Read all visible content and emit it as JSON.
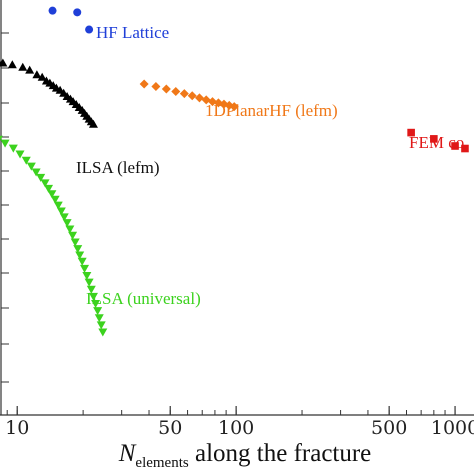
{
  "chart_data": {
    "type": "scatter",
    "x_scale": "log",
    "xlim": [
      8,
      1300
    ],
    "ylim": [
      0,
      1
    ],
    "xlabel_main": "N",
    "xlabel_sub": "elements",
    "xlabel_rest": " along the fracture",
    "x_ticks": [
      {
        "value": 10,
        "label": "10"
      },
      {
        "value": 50,
        "label": "50"
      },
      {
        "value": 100,
        "label": "100"
      },
      {
        "value": 500,
        "label": "500"
      },
      {
        "value": 1000,
        "label": "1000"
      }
    ],
    "series": [
      {
        "label": "HF Lattice",
        "color": "#1f3fd8",
        "marker": "circle",
        "points": [
          [
            14.5,
            0.965
          ],
          [
            18.8,
            0.961
          ],
          [
            21.3,
            0.92
          ]
        ]
      },
      {
        "label": "ILSA (lefm)",
        "color": "#000000",
        "marker": "triangle-up",
        "points": [
          [
            8.1,
            0.846
          ],
          [
            8.6,
            0.84
          ],
          [
            9.5,
            0.836
          ],
          [
            10.6,
            0.83
          ],
          [
            11.4,
            0.823
          ],
          [
            12.3,
            0.812
          ],
          [
            13.0,
            0.806
          ],
          [
            13.6,
            0.797
          ],
          [
            14.1,
            0.792
          ],
          [
            14.6,
            0.786
          ],
          [
            15.1,
            0.78
          ],
          [
            15.7,
            0.775
          ],
          [
            16.3,
            0.768
          ],
          [
            16.9,
            0.76
          ],
          [
            17.5,
            0.754
          ],
          [
            18.0,
            0.748
          ],
          [
            18.6,
            0.741
          ],
          [
            19.2,
            0.734
          ],
          [
            19.8,
            0.727
          ],
          [
            20.3,
            0.72
          ],
          [
            20.8,
            0.713
          ],
          [
            21.3,
            0.706
          ],
          [
            21.8,
            0.7
          ],
          [
            22.3,
            0.694
          ]
        ]
      },
      {
        "label": "1DPlanarHF (lefm)",
        "color": "#f07818",
        "marker": "diamond",
        "points": [
          [
            38,
            0.79
          ],
          [
            43,
            0.784
          ],
          [
            48,
            0.778
          ],
          [
            53,
            0.772
          ],
          [
            58,
            0.767
          ],
          [
            63,
            0.762
          ],
          [
            68,
            0.757
          ],
          [
            73,
            0.752
          ],
          [
            78,
            0.748
          ],
          [
            83,
            0.745
          ],
          [
            88,
            0.742
          ],
          [
            93,
            0.739
          ],
          [
            98,
            0.736
          ]
        ]
      },
      {
        "label": "FEM co",
        "color": "#e01818",
        "marker": "square",
        "points": [
          [
            630,
            0.674
          ],
          [
            800,
            0.659
          ],
          [
            1000,
            0.642
          ],
          [
            1110,
            0.636
          ]
        ]
      },
      {
        "label": "ILSA (universal)",
        "color": "#3cd21e",
        "marker": "triangle-down",
        "points": [
          [
            8.2,
            0.658
          ],
          [
            8.8,
            0.649
          ],
          [
            9.6,
            0.637
          ],
          [
            10.3,
            0.623
          ],
          [
            11.0,
            0.608
          ],
          [
            11.6,
            0.594
          ],
          [
            12.2,
            0.58
          ],
          [
            12.8,
            0.567
          ],
          [
            13.4,
            0.554
          ],
          [
            13.9,
            0.541
          ],
          [
            14.4,
            0.528
          ],
          [
            14.9,
            0.515
          ],
          [
            15.4,
            0.501
          ],
          [
            15.9,
            0.487
          ],
          [
            16.4,
            0.473
          ],
          [
            16.9,
            0.459
          ],
          [
            17.4,
            0.444
          ],
          [
            17.9,
            0.429
          ],
          [
            18.4,
            0.413
          ],
          [
            18.9,
            0.397
          ],
          [
            19.3,
            0.382
          ],
          [
            19.8,
            0.367
          ],
          [
            20.3,
            0.35
          ],
          [
            20.8,
            0.333
          ],
          [
            21.3,
            0.317
          ],
          [
            21.8,
            0.3
          ],
          [
            22.3,
            0.283
          ],
          [
            22.8,
            0.266
          ],
          [
            23.3,
            0.249
          ],
          [
            23.7,
            0.232
          ],
          [
            24.2,
            0.215
          ],
          [
            24.6,
            0.198
          ]
        ]
      }
    ]
  }
}
